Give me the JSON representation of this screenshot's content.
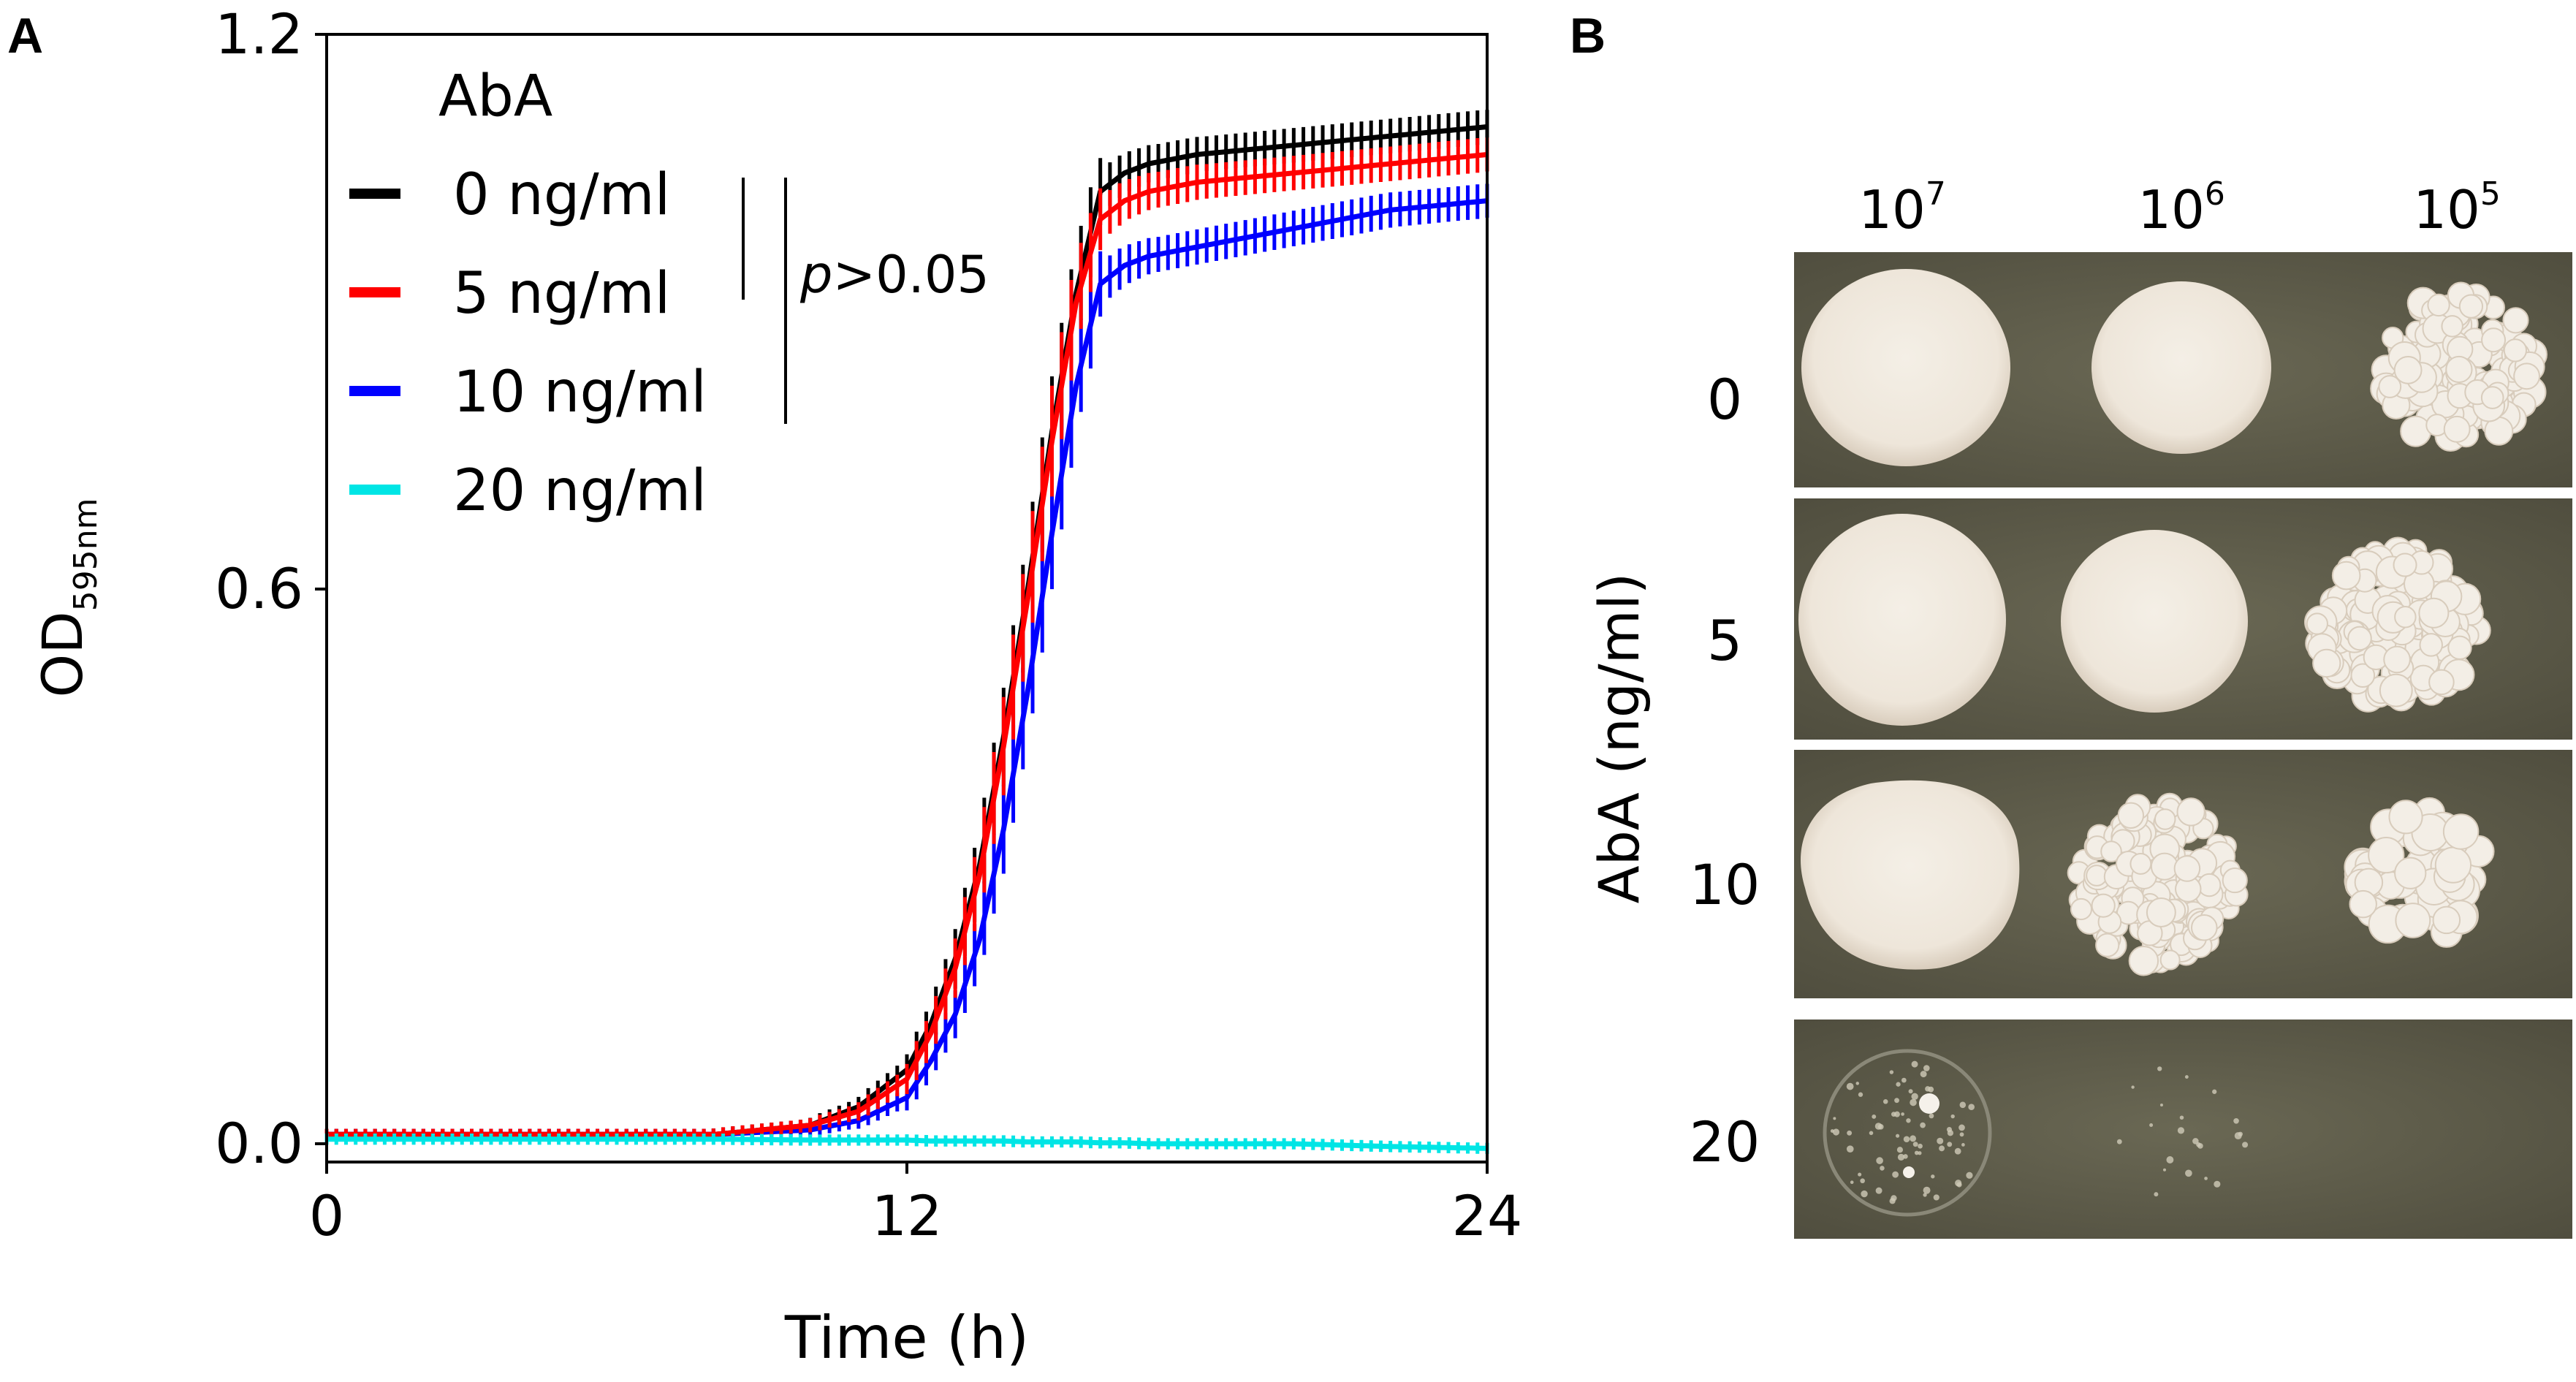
{
  "panel_a": {
    "letter": "A",
    "chart_data": {
      "type": "line",
      "xlabel": "Time (h)",
      "ylabel": "OD",
      "ylabel_subscript": "595nm",
      "xlim": [
        0,
        24
      ],
      "ylim": [
        -0.02,
        1.2
      ],
      "xticks": [
        0,
        12,
        24
      ],
      "xtick_labels": [
        "0",
        "12",
        "24"
      ],
      "yticks": [
        0.0,
        0.6,
        1.2
      ],
      "ytick_labels": [
        "0.0",
        "0.6",
        "1.2"
      ],
      "x": [
        0,
        2,
        4,
        6,
        8,
        10,
        11,
        12,
        12.5,
        13,
        13.5,
        14,
        14.5,
        15,
        15.5,
        16,
        16.5,
        17,
        18,
        20,
        22,
        24
      ],
      "series": [
        {
          "name": "0 ng/ml",
          "color": "#000000",
          "error_bars": true,
          "values": [
            0.01,
            0.01,
            0.01,
            0.01,
            0.01,
            0.02,
            0.04,
            0.08,
            0.13,
            0.2,
            0.3,
            0.44,
            0.6,
            0.77,
            0.92,
            1.03,
            1.05,
            1.06,
            1.07,
            1.08,
            1.09,
            1.1
          ]
        },
        {
          "name": "5 ng/ml",
          "color": "#ff0000",
          "error_bars": true,
          "values": [
            0.01,
            0.01,
            0.01,
            0.01,
            0.01,
            0.02,
            0.035,
            0.07,
            0.12,
            0.19,
            0.29,
            0.43,
            0.59,
            0.76,
            0.91,
            1.0,
            1.02,
            1.03,
            1.04,
            1.05,
            1.06,
            1.07
          ]
        },
        {
          "name": "10 ng/ml",
          "color": "#0000ff",
          "error_bars": true,
          "values": [
            0.01,
            0.01,
            0.01,
            0.01,
            0.01,
            0.015,
            0.025,
            0.05,
            0.09,
            0.14,
            0.22,
            0.34,
            0.49,
            0.66,
            0.82,
            0.93,
            0.95,
            0.96,
            0.97,
            0.99,
            1.01,
            1.02
          ]
        },
        {
          "name": "20 ng/ml",
          "color": "#00e5e5",
          "error_bars": true,
          "values": [
            0.005,
            0.005,
            0.005,
            0.005,
            0.005,
            0.004,
            0.004,
            0.004,
            0.003,
            0.003,
            0.003,
            0.003,
            0.002,
            0.002,
            0.002,
            0.001,
            0.001,
            0.0,
            0.0,
            0.0,
            -0.003,
            -0.005
          ]
        }
      ],
      "legend": {
        "title": "AbA",
        "position": "top-left",
        "labels": [
          "0 ng/ml",
          "5 ng/ml",
          "10 ng/ml",
          "20 ng/ml"
        ]
      },
      "annotation": {
        "p_symbol": "p",
        "p_text": ">0.05"
      }
    }
  },
  "panel_b": {
    "letter": "B",
    "dilution_base": "10",
    "dilution_exponents": [
      "7",
      "6",
      "5"
    ],
    "ylabel": "AbA (ng/ml)",
    "rows": [
      {
        "label": "0",
        "spots": [
          "lawn",
          "lawn",
          "colonies"
        ]
      },
      {
        "label": "5",
        "spots": [
          "lawn",
          "lawn",
          "colonies"
        ]
      },
      {
        "label": "10",
        "spots": [
          "lawn",
          "colonies",
          "sparse-colonies"
        ]
      },
      {
        "label": "20",
        "spots": [
          "trace",
          "trace",
          "none"
        ]
      }
    ],
    "colors": {
      "agar": "#5c5a48",
      "cells": "#f2ece2"
    }
  }
}
